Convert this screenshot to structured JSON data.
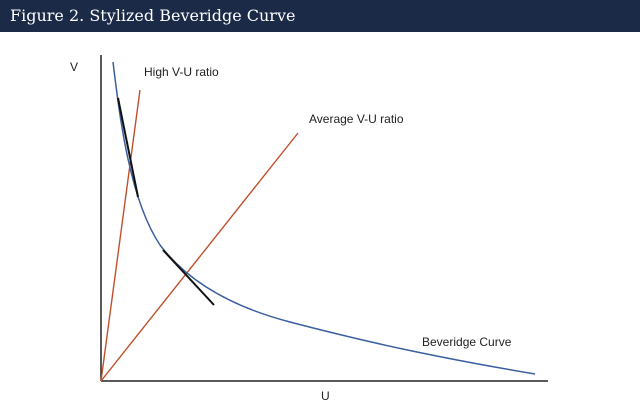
{
  "header": {
    "title": "Figure 2. Stylized Beveridge Curve"
  },
  "axes": {
    "y_label": "V",
    "x_label": "U"
  },
  "labels": {
    "high_ratio": "High V-U ratio",
    "average_ratio": "Average V-U ratio",
    "curve": "Beveridge Curve"
  },
  "colors": {
    "header_bg": "#1b2a47",
    "curve": "#3b5f9e",
    "ratio_lines": "#c0502b",
    "tangents": "#111111",
    "axes": "#222222"
  }
}
